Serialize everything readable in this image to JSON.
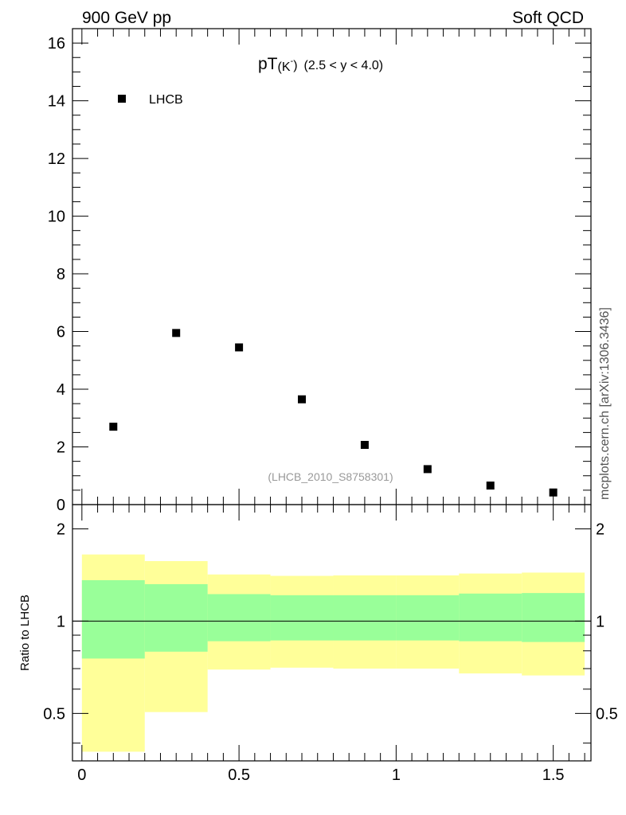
{
  "header": {
    "left": "900 GeV pp",
    "right": "Soft QCD"
  },
  "side_label": "mcplots.cern.ch [arXiv:1306.3436]",
  "chart_data": [
    {
      "type": "scatter",
      "title_main": "pT",
      "title_sub": "(K",
      "title_sup": "-",
      "title_sub_end": ")",
      "title_range": "(2.5 < y < 4.0)",
      "watermark": "(LHCB_2010_S8758301)",
      "xlim": [
        -0.03,
        1.62
      ],
      "ylim": [
        0,
        16.5
      ],
      "yticks": [
        0,
        2,
        4,
        6,
        8,
        10,
        12,
        14,
        16
      ],
      "series": [
        {
          "name": "LHCB",
          "marker": "square",
          "color": "#000000",
          "x": [
            0.1,
            0.3,
            0.5,
            0.7,
            0.9,
            1.1,
            1.3,
            1.5
          ],
          "y": [
            2.7,
            5.95,
            5.45,
            3.65,
            2.07,
            1.23,
            0.66,
            0.42
          ]
        }
      ]
    },
    {
      "type": "area",
      "ylabel": "Ratio to LHCB",
      "yscale": "log",
      "ylim": [
        0.35,
        2.4
      ],
      "yticks": [
        0.5,
        1,
        2
      ],
      "ytick_labels": [
        "0.5",
        "1",
        "2"
      ],
      "xticks": [
        0,
        0.5,
        1,
        1.5
      ],
      "xtick_labels": [
        "0",
        "0.5",
        "1",
        "1.5"
      ],
      "reference_line": 1,
      "bins": [
        {
          "lo": 0.0,
          "hi": 0.2,
          "inner": [
            0.755,
            1.36
          ],
          "outer": [
            0.375,
            1.65
          ]
        },
        {
          "lo": 0.2,
          "hi": 0.4,
          "inner": [
            0.795,
            1.32
          ],
          "outer": [
            0.505,
            1.57
          ]
        },
        {
          "lo": 0.4,
          "hi": 0.6,
          "inner": [
            0.86,
            1.225
          ],
          "outer": [
            0.695,
            1.42
          ]
        },
        {
          "lo": 0.6,
          "hi": 0.8,
          "inner": [
            0.865,
            1.215
          ],
          "outer": [
            0.705,
            1.405
          ]
        },
        {
          "lo": 0.8,
          "hi": 1.0,
          "inner": [
            0.865,
            1.215
          ],
          "outer": [
            0.7,
            1.41
          ]
        },
        {
          "lo": 1.0,
          "hi": 1.2,
          "inner": [
            0.865,
            1.215
          ],
          "outer": [
            0.7,
            1.41
          ]
        },
        {
          "lo": 1.2,
          "hi": 1.4,
          "inner": [
            0.86,
            1.23
          ],
          "outer": [
            0.675,
            1.43
          ]
        },
        {
          "lo": 1.4,
          "hi": 1.6,
          "inner": [
            0.855,
            1.235
          ],
          "outer": [
            0.665,
            1.44
          ]
        }
      ],
      "colors": {
        "inner": "#99ff99",
        "outer": "#ffff99"
      }
    }
  ]
}
